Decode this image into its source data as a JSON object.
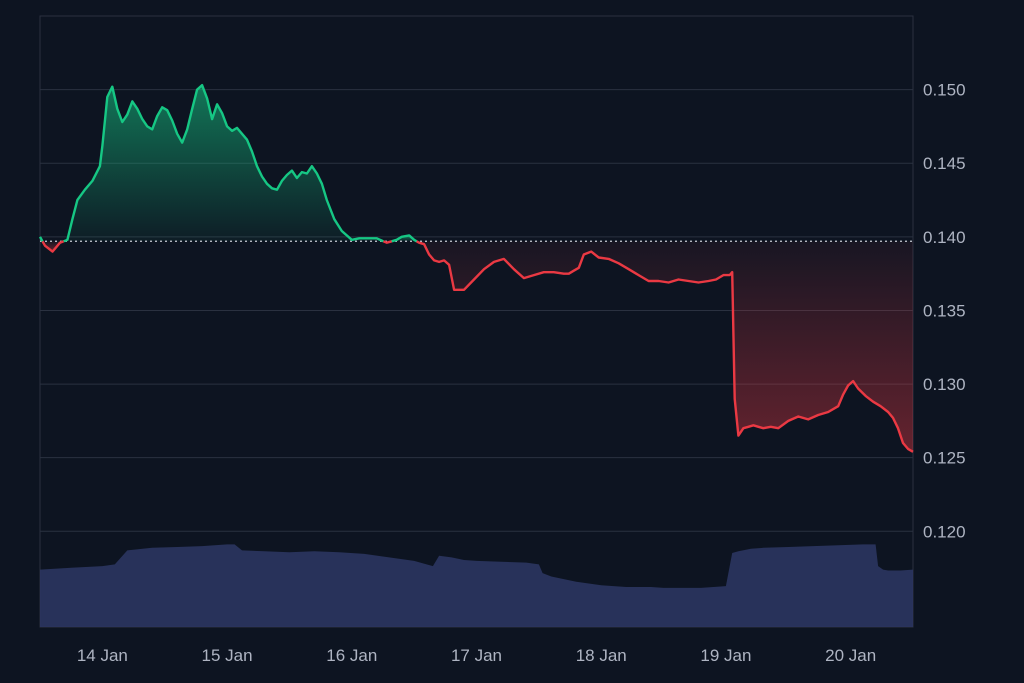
{
  "chart_data": {
    "type": "line",
    "title": "",
    "xlabel": "",
    "ylabel": "",
    "baseline": 0.1397,
    "ylim": [
      0.1135,
      0.155
    ],
    "y_ticks": [
      0.15,
      0.145,
      0.14,
      0.135,
      0.13,
      0.125,
      0.12
    ],
    "y_tick_labels": [
      "0.150",
      "0.145",
      "0.140",
      "0.135",
      "0.130",
      "0.125",
      "0.120"
    ],
    "x_ticks": [
      {
        "day": 0.5,
        "label": "14 Jan"
      },
      {
        "day": 1.5,
        "label": "15 Jan"
      },
      {
        "day": 2.5,
        "label": "16 Jan"
      },
      {
        "day": 3.5,
        "label": "17 Jan"
      },
      {
        "day": 4.5,
        "label": "18 Jan"
      },
      {
        "day": 5.5,
        "label": "19 Jan"
      },
      {
        "day": 6.5,
        "label": "20 Jan"
      }
    ],
    "xlim": [
      0,
      7
    ],
    "grid": true,
    "colors": {
      "up": "#16c784",
      "down": "#ea3943",
      "volume": "#2b3561",
      "grid": "#2a3140",
      "baseline": "#c9ced8"
    },
    "series": [
      {
        "x": [
          0.0,
          0.04,
          0.1,
          0.16,
          0.22,
          0.26,
          0.3,
          0.36,
          0.42,
          0.48,
          0.5,
          0.54,
          0.58,
          0.62,
          0.66,
          0.7,
          0.74,
          0.78,
          0.82,
          0.86,
          0.9,
          0.94,
          0.98,
          1.02,
          1.06,
          1.1,
          1.14,
          1.18,
          1.22,
          1.26,
          1.3,
          1.34,
          1.38,
          1.42,
          1.46,
          1.5,
          1.54,
          1.58,
          1.62,
          1.66,
          1.7,
          1.74,
          1.78,
          1.82,
          1.86,
          1.9,
          1.94,
          1.98,
          2.02,
          2.06,
          2.1,
          2.14,
          2.18,
          2.22,
          2.26,
          2.3,
          2.36,
          2.42,
          2.5,
          2.56,
          2.62,
          2.7,
          2.78,
          2.86,
          2.9,
          2.96,
          3.0,
          3.04,
          3.08,
          3.12,
          3.16,
          3.2,
          3.24,
          3.28,
          3.32,
          3.4,
          3.48,
          3.56,
          3.64,
          3.72,
          3.8,
          3.88,
          3.96,
          4.04,
          4.12,
          4.2,
          4.24,
          4.28,
          4.32,
          4.36,
          4.42,
          4.48,
          4.56,
          4.64,
          4.72,
          4.8,
          4.88,
          4.96,
          5.04,
          5.12,
          5.2,
          5.28,
          5.36,
          5.42,
          5.48,
          5.52,
          5.53,
          5.55,
          5.57,
          5.6,
          5.64,
          5.68,
          5.72,
          5.76,
          5.8,
          5.86,
          5.92,
          6.0,
          6.08,
          6.16,
          6.24,
          6.32,
          6.4,
          6.44,
          6.48,
          6.52,
          6.56,
          6.62,
          6.68,
          6.74,
          6.8,
          6.84,
          6.88,
          6.92,
          6.96,
          7.0
        ],
        "y": [
          0.14,
          0.1394,
          0.139,
          0.1396,
          0.1398,
          0.1412,
          0.1425,
          0.1432,
          0.1438,
          0.1448,
          0.1462,
          0.1495,
          0.1502,
          0.1487,
          0.1478,
          0.1483,
          0.1492,
          0.1487,
          0.148,
          0.1475,
          0.1473,
          0.1482,
          0.1488,
          0.1486,
          0.1479,
          0.147,
          0.1464,
          0.1473,
          0.1487,
          0.15,
          0.1503,
          0.1494,
          0.148,
          0.149,
          0.1484,
          0.1475,
          0.1472,
          0.1474,
          0.147,
          0.1466,
          0.1458,
          0.1448,
          0.1441,
          0.1436,
          0.1433,
          0.1432,
          0.1438,
          0.1442,
          0.1445,
          0.144,
          0.1444,
          0.1443,
          0.1448,
          0.1443,
          0.1436,
          0.1425,
          0.1412,
          0.1404,
          0.1398,
          0.1399,
          0.1399,
          0.1399,
          0.1396,
          0.1398,
          0.14,
          0.1401,
          0.1398,
          0.1396,
          0.1395,
          0.1388,
          0.1384,
          0.1383,
          0.1384,
          0.1381,
          0.1364,
          0.1364,
          0.1371,
          0.1378,
          0.1383,
          0.1385,
          0.1378,
          0.1372,
          0.1374,
          0.1376,
          0.1376,
          0.1375,
          0.1375,
          0.1377,
          0.1379,
          0.1388,
          0.139,
          0.1386,
          0.1385,
          0.1382,
          0.1378,
          0.1374,
          0.137,
          0.137,
          0.1369,
          0.1371,
          0.137,
          0.1369,
          0.137,
          0.1371,
          0.1374,
          0.1374,
          0.1374,
          0.1376,
          0.129,
          0.1265,
          0.127,
          0.1271,
          0.1272,
          0.1271,
          0.127,
          0.1271,
          0.127,
          0.1275,
          0.1278,
          0.1276,
          0.1279,
          0.1281,
          0.1285,
          0.1293,
          0.1299,
          0.1302,
          0.1297,
          0.1292,
          0.1288,
          0.1285,
          0.1281,
          0.1277,
          0.127,
          0.126,
          0.1256,
          0.1254
        ]
      }
    ],
    "volume": {
      "x": [
        0.0,
        0.25,
        0.5,
        0.6,
        0.7,
        0.9,
        1.1,
        1.3,
        1.5,
        1.56,
        1.62,
        1.8,
        2.0,
        2.2,
        2.4,
        2.6,
        2.8,
        3.0,
        3.1,
        3.15,
        3.2,
        3.3,
        3.4,
        3.5,
        3.7,
        3.9,
        4.0,
        4.03,
        4.1,
        4.3,
        4.5,
        4.7,
        4.9,
        5.0,
        5.1,
        5.2,
        5.3,
        5.4,
        5.5,
        5.55,
        5.6,
        5.7,
        5.8,
        6.0,
        6.2,
        6.4,
        6.6,
        6.7,
        6.72,
        6.76,
        6.8,
        6.9,
        7.0
      ],
      "y": [
        0.66,
        0.68,
        0.7,
        0.72,
        0.88,
        0.91,
        0.92,
        0.93,
        0.95,
        0.95,
        0.88,
        0.87,
        0.86,
        0.87,
        0.86,
        0.84,
        0.8,
        0.76,
        0.72,
        0.7,
        0.82,
        0.8,
        0.77,
        0.76,
        0.75,
        0.74,
        0.72,
        0.62,
        0.58,
        0.52,
        0.48,
        0.46,
        0.46,
        0.45,
        0.45,
        0.45,
        0.45,
        0.46,
        0.47,
        0.85,
        0.87,
        0.9,
        0.91,
        0.92,
        0.93,
        0.94,
        0.95,
        0.95,
        0.7,
        0.66,
        0.65,
        0.65,
        0.66
      ]
    }
  }
}
